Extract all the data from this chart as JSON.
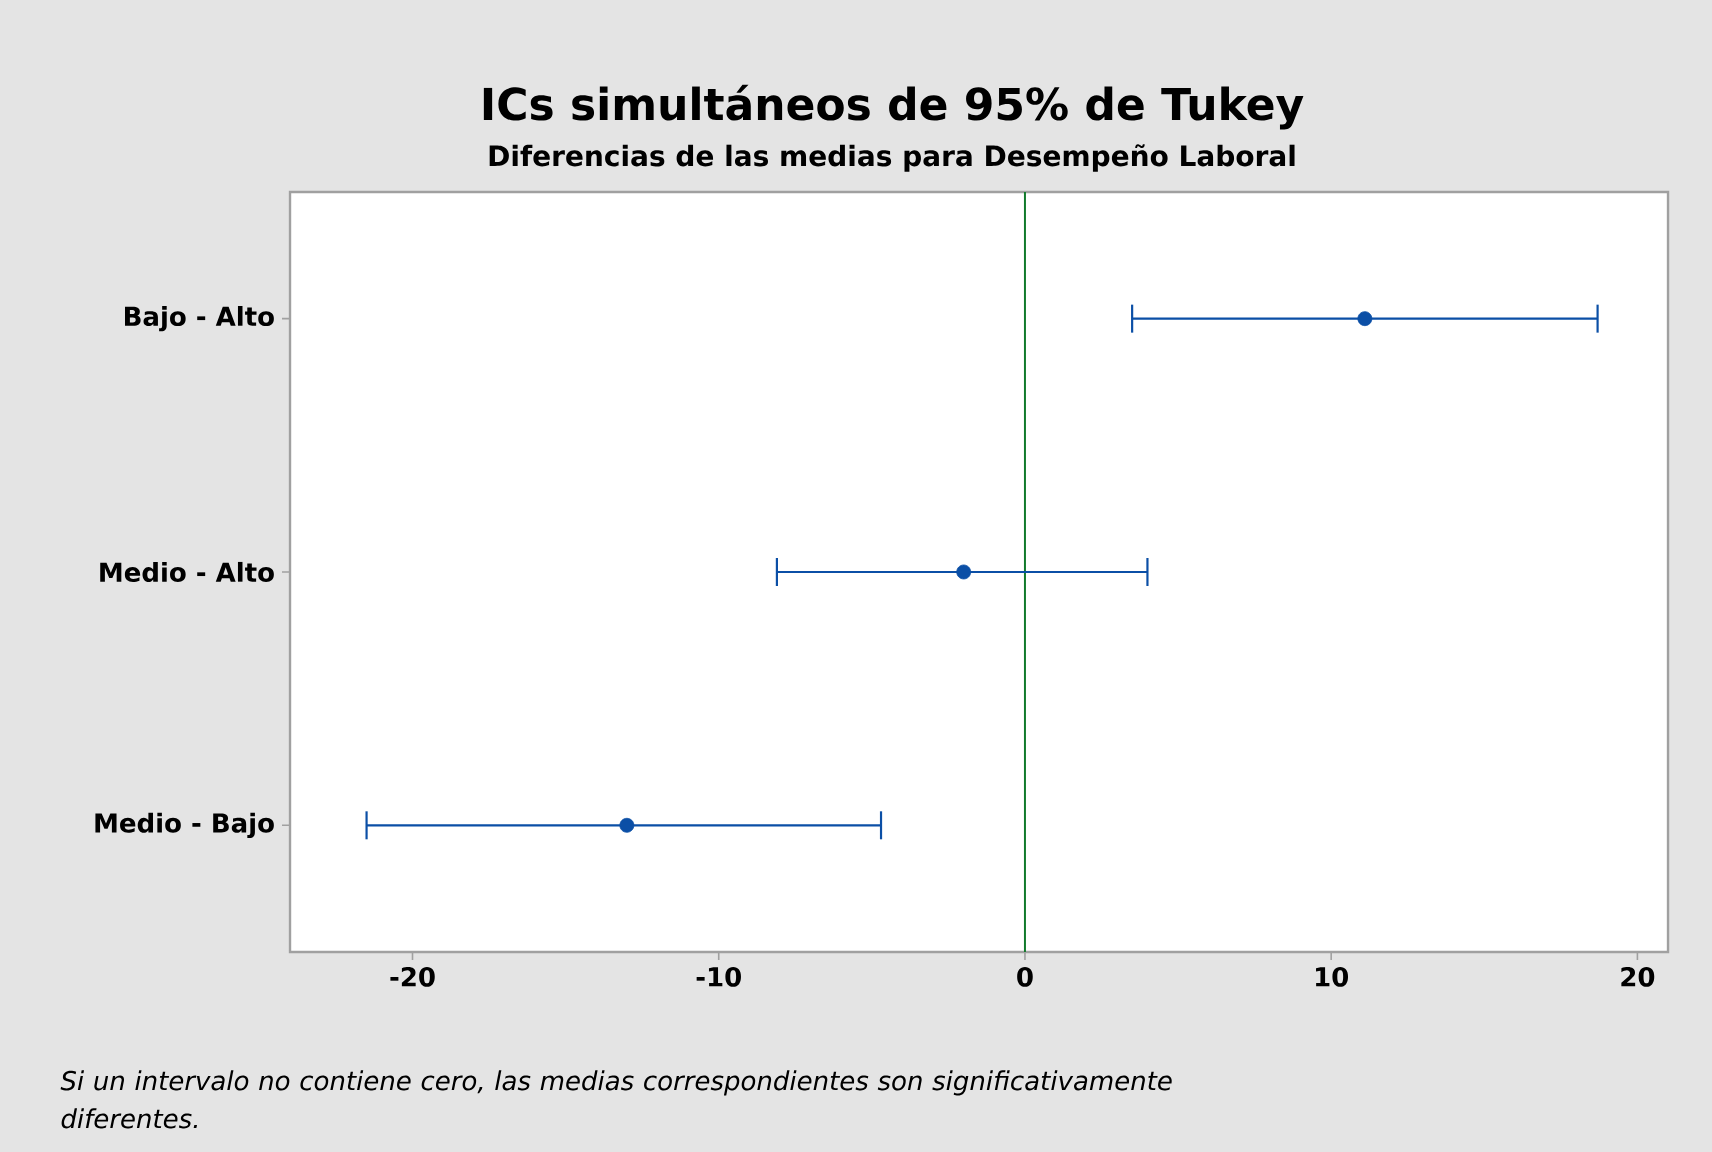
{
  "chart_data": {
    "type": "scatter",
    "orientation": "horizontal",
    "title": "ICs simultáneos de 95% de Tukey",
    "subtitle": "Diferencias de las medias para Desempeño Laboral",
    "categories": [
      "Bajo - Alto",
      "Medio - Alto",
      "Medio - Bajo"
    ],
    "values": [
      11.1,
      -2.0,
      -13.0
    ],
    "errors": [
      [
        3.5,
        18.7
      ],
      [
        -8.1,
        4.0
      ],
      [
        -21.5,
        -4.7
      ]
    ],
    "color": "#0b4fa6",
    "marker": "circle",
    "xlim": [
      -24,
      21
    ],
    "xticks": [
      -20,
      -10,
      0,
      10,
      20
    ],
    "ref_lines": [
      {
        "axis": "x",
        "value": 0,
        "color": "#117a2b"
      }
    ],
    "grid": false,
    "annotations": [
      "Si un intervalo no contiene cero, las medias correspondientes son significativamente diferentes."
    ]
  }
}
